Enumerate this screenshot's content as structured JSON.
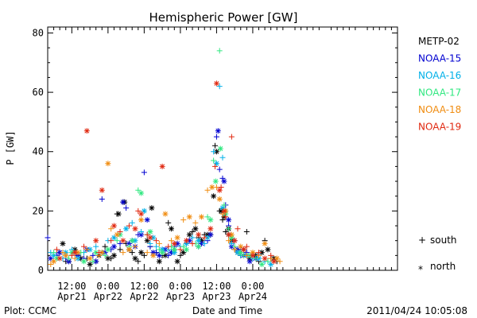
{
  "chart_data": {
    "type": "scatter",
    "title": "Hemispheric Power [GW]",
    "xlabel": "Date and Time",
    "ylabel": "P [GW]",
    "ylim": [
      0,
      82
    ],
    "xlim_hours": [
      4,
      120
    ],
    "yticks": [
      0,
      20,
      40,
      60,
      80
    ],
    "xticks": [
      {
        "hour": 12,
        "top": "12:00",
        "bottom": "Apr21"
      },
      {
        "hour": 24,
        "top": "0:00",
        "bottom": "Apr22"
      },
      {
        "hour": 36,
        "top": "12:00",
        "bottom": "Apr22"
      },
      {
        "hour": 48,
        "top": "0:00",
        "bottom": "Apr23"
      },
      {
        "hour": 60,
        "top": "12:00",
        "bottom": "Apr23"
      },
      {
        "hour": 72,
        "top": "0:00",
        "bottom": "Apr24"
      }
    ],
    "x_unit_note": "hours after 2011/04/21 00:00",
    "markers": {
      "south": "+",
      "north": "*"
    },
    "marker_legend": [
      {
        "symbol": "+",
        "label": "south"
      },
      {
        "symbol": "*",
        "label": "north"
      }
    ],
    "series": [
      {
        "name": "METP-02",
        "color": "#000000",
        "south": [
          [
            8,
            6
          ],
          [
            10,
            3
          ],
          [
            14,
            5
          ],
          [
            17,
            4
          ],
          [
            20,
            3
          ],
          [
            23,
            8
          ],
          [
            25,
            4
          ],
          [
            27,
            19
          ],
          [
            28,
            7
          ],
          [
            29,
            23
          ],
          [
            30,
            9
          ],
          [
            32,
            6
          ],
          [
            34,
            3
          ],
          [
            36,
            5
          ],
          [
            38,
            8
          ],
          [
            40,
            6
          ],
          [
            42,
            5
          ],
          [
            44,
            16
          ],
          [
            46,
            7
          ],
          [
            48,
            5
          ],
          [
            50,
            9
          ],
          [
            52,
            13
          ],
          [
            54,
            11
          ],
          [
            56,
            12
          ],
          [
            58,
            12
          ],
          [
            59.5,
            42
          ],
          [
            61,
            20
          ],
          [
            62,
            17
          ],
          [
            63,
            13
          ],
          [
            64,
            12
          ],
          [
            66,
            7
          ],
          [
            68,
            5
          ],
          [
            70,
            13
          ],
          [
            72,
            4
          ],
          [
            74,
            3
          ],
          [
            76,
            10
          ],
          [
            78,
            4
          ],
          [
            80,
            3
          ]
        ],
        "north": [
          [
            9,
            9
          ],
          [
            11,
            3
          ],
          [
            13,
            7
          ],
          [
            15,
            4
          ],
          [
            18,
            2
          ],
          [
            21,
            5
          ],
          [
            24,
            4
          ],
          [
            26,
            5
          ],
          [
            27.5,
            19
          ],
          [
            29.5,
            23
          ],
          [
            31,
            7
          ],
          [
            33,
            4
          ],
          [
            35,
            6
          ],
          [
            37,
            10
          ],
          [
            38.5,
            21
          ],
          [
            41,
            3
          ],
          [
            43,
            5
          ],
          [
            45,
            14
          ],
          [
            47,
            3
          ],
          [
            49,
            6
          ],
          [
            51,
            12
          ],
          [
            53,
            14
          ],
          [
            55,
            10
          ],
          [
            57,
            12
          ],
          [
            59,
            25
          ],
          [
            60,
            40
          ],
          [
            61.5,
            20
          ],
          [
            62.5,
            18
          ],
          [
            64,
            14
          ],
          [
            65,
            10
          ],
          [
            67,
            6
          ],
          [
            69,
            7
          ],
          [
            71,
            4
          ],
          [
            73,
            5
          ],
          [
            75,
            6
          ],
          [
            77,
            7
          ],
          [
            79,
            4
          ]
        ]
      },
      {
        "name": "NOAA-15",
        "color": "#0000d0",
        "south": [
          [
            4,
            11
          ],
          [
            7,
            5
          ],
          [
            10,
            4
          ],
          [
            13,
            6
          ],
          [
            16,
            4
          ],
          [
            19,
            5
          ],
          [
            22,
            24
          ],
          [
            25,
            7
          ],
          [
            28,
            9
          ],
          [
            30,
            21
          ],
          [
            32,
            10
          ],
          [
            34,
            12
          ],
          [
            36,
            33
          ],
          [
            38,
            8
          ],
          [
            40,
            6
          ],
          [
            42,
            7
          ],
          [
            44,
            5
          ],
          [
            46,
            8
          ],
          [
            50,
            9
          ],
          [
            54,
            8
          ],
          [
            57,
            10
          ],
          [
            60,
            45
          ],
          [
            61,
            34
          ],
          [
            62,
            31
          ],
          [
            63,
            22
          ],
          [
            64,
            15
          ],
          [
            66,
            10
          ],
          [
            68,
            7
          ],
          [
            70,
            6
          ],
          [
            72,
            5
          ],
          [
            74,
            4
          ]
        ],
        "north": [
          [
            5,
            4
          ],
          [
            8,
            6
          ],
          [
            11,
            3
          ],
          [
            14,
            5
          ],
          [
            17,
            7
          ],
          [
            20,
            3
          ],
          [
            23,
            6
          ],
          [
            26,
            8
          ],
          [
            29,
            23
          ],
          [
            31,
            9
          ],
          [
            33,
            8
          ],
          [
            35,
            12
          ],
          [
            37,
            17
          ],
          [
            39,
            6
          ],
          [
            41,
            5
          ],
          [
            43,
            7
          ],
          [
            45,
            6
          ],
          [
            47,
            9
          ],
          [
            51,
            10
          ],
          [
            55,
            9
          ],
          [
            58,
            12
          ],
          [
            60.5,
            47
          ],
          [
            62.5,
            30
          ],
          [
            64,
            17
          ],
          [
            65,
            8
          ],
          [
            67,
            7
          ],
          [
            69,
            5
          ],
          [
            71,
            3
          ],
          [
            73,
            4
          ]
        ]
      },
      {
        "name": "NOAA-16",
        "color": "#00b0e8",
        "south": [
          [
            5,
            6
          ],
          [
            9,
            4
          ],
          [
            12,
            7
          ],
          [
            16,
            6
          ],
          [
            20,
            8
          ],
          [
            24,
            10
          ],
          [
            28,
            13
          ],
          [
            32,
            16
          ],
          [
            35,
            13
          ],
          [
            38,
            9
          ],
          [
            40,
            8
          ],
          [
            44,
            7
          ],
          [
            48,
            8
          ],
          [
            52,
            11
          ],
          [
            56,
            9
          ],
          [
            59,
            40
          ],
          [
            61,
            62
          ],
          [
            62,
            38
          ],
          [
            63,
            20
          ],
          [
            65,
            9
          ],
          [
            68,
            5
          ],
          [
            72,
            4
          ],
          [
            76,
            3
          ]
        ],
        "north": [
          [
            6,
            5
          ],
          [
            10,
            6
          ],
          [
            14,
            4
          ],
          [
            18,
            7
          ],
          [
            22,
            6
          ],
          [
            26,
            11
          ],
          [
            30,
            14
          ],
          [
            33,
            10
          ],
          [
            36,
            20
          ],
          [
            39,
            11
          ],
          [
            42,
            7
          ],
          [
            46,
            6
          ],
          [
            50,
            9
          ],
          [
            54,
            10
          ],
          [
            57,
            11
          ],
          [
            60,
            36
          ],
          [
            62,
            21
          ],
          [
            64,
            12
          ],
          [
            67,
            6
          ],
          [
            70,
            5
          ],
          [
            74,
            4
          ],
          [
            78,
            2
          ]
        ]
      },
      {
        "name": "NOAA-17",
        "color": "#30e880",
        "south": [
          [
            6,
            6
          ],
          [
            11,
            4
          ],
          [
            15,
            6
          ],
          [
            19,
            3
          ],
          [
            23,
            5
          ],
          [
            27,
            10
          ],
          [
            31,
            8
          ],
          [
            34,
            27
          ],
          [
            37,
            12
          ],
          [
            41,
            7
          ],
          [
            45,
            8
          ],
          [
            49,
            8
          ],
          [
            53,
            9
          ],
          [
            57,
            18
          ],
          [
            59,
            37
          ],
          [
            61,
            74
          ],
          [
            62.5,
            22
          ],
          [
            64,
            14
          ],
          [
            66,
            8
          ],
          [
            69,
            5
          ],
          [
            73,
            4
          ],
          [
            77,
            3
          ]
        ],
        "north": [
          [
            7,
            4
          ],
          [
            12,
            6
          ],
          [
            16,
            3
          ],
          [
            20,
            6
          ],
          [
            24,
            7
          ],
          [
            28,
            12
          ],
          [
            32,
            10
          ],
          [
            35,
            26
          ],
          [
            38,
            13
          ],
          [
            42,
            6
          ],
          [
            46,
            7
          ],
          [
            50,
            7
          ],
          [
            54,
            8
          ],
          [
            58,
            17
          ],
          [
            59.7,
            30
          ],
          [
            61.3,
            41
          ],
          [
            63,
            19
          ],
          [
            65,
            11
          ],
          [
            68,
            6
          ],
          [
            71,
            5
          ],
          [
            75,
            2
          ]
        ]
      },
      {
        "name": "NOAA-18",
        "color": "#f08c10",
        "south": [
          [
            5,
            2
          ],
          [
            9,
            6
          ],
          [
            13,
            4
          ],
          [
            17,
            7
          ],
          [
            21,
            5
          ],
          [
            25,
            14
          ],
          [
            29,
            6
          ],
          [
            33,
            8
          ],
          [
            37,
            6
          ],
          [
            41,
            9
          ],
          [
            45,
            10
          ],
          [
            49,
            17
          ],
          [
            53,
            16
          ],
          [
            57,
            27
          ],
          [
            60,
            28
          ],
          [
            62,
            19
          ],
          [
            64,
            10
          ],
          [
            66,
            7
          ],
          [
            70,
            5
          ],
          [
            74,
            5
          ],
          [
            78,
            4
          ],
          [
            81,
            3
          ]
        ],
        "north": [
          [
            6,
            3
          ],
          [
            10,
            5
          ],
          [
            14,
            6
          ],
          [
            18,
            4
          ],
          [
            22,
            6
          ],
          [
            24,
            36
          ],
          [
            27,
            12
          ],
          [
            31,
            7
          ],
          [
            35,
            17
          ],
          [
            39,
            5
          ],
          [
            43,
            19
          ],
          [
            47,
            11
          ],
          [
            51,
            18
          ],
          [
            55,
            18
          ],
          [
            58.5,
            28
          ],
          [
            61,
            24
          ],
          [
            63,
            20
          ],
          [
            65,
            12
          ],
          [
            68,
            8
          ],
          [
            72,
            6
          ],
          [
            76,
            9
          ],
          [
            80,
            4
          ]
        ]
      },
      {
        "name": "NOAA-19",
        "color": "#e02810",
        "south": [
          [
            7,
            7
          ],
          [
            12,
            5
          ],
          [
            16,
            8
          ],
          [
            21,
            6
          ],
          [
            25,
            10
          ],
          [
            28,
            13
          ],
          [
            31,
            15
          ],
          [
            34,
            20
          ],
          [
            37,
            12
          ],
          [
            40,
            10
          ],
          [
            44,
            8
          ],
          [
            48,
            7
          ],
          [
            52,
            9
          ],
          [
            56,
            11
          ],
          [
            59.5,
            35
          ],
          [
            61.5,
            28
          ],
          [
            63,
            18
          ],
          [
            65,
            45
          ],
          [
            67,
            14
          ],
          [
            70,
            8
          ],
          [
            74,
            6
          ],
          [
            78,
            5
          ]
        ],
        "north": [
          [
            8,
            4
          ],
          [
            13,
            6
          ],
          [
            17,
            47
          ],
          [
            20,
            10
          ],
          [
            22,
            27
          ],
          [
            26,
            15
          ],
          [
            29,
            10
          ],
          [
            33,
            14
          ],
          [
            35,
            19
          ],
          [
            38,
            11
          ],
          [
            42,
            35
          ],
          [
            46,
            9
          ],
          [
            50,
            10
          ],
          [
            54,
            12
          ],
          [
            58,
            14
          ],
          [
            60,
            63
          ],
          [
            61,
            27
          ],
          [
            62.5,
            20
          ],
          [
            64,
            12
          ],
          [
            66,
            10
          ],
          [
            69,
            7
          ],
          [
            72,
            5
          ],
          [
            76,
            4
          ],
          [
            79,
            3
          ]
        ]
      }
    ]
  },
  "footer": {
    "left": "Plot: CCMC",
    "right": "2011/04/24 10:05:08"
  }
}
